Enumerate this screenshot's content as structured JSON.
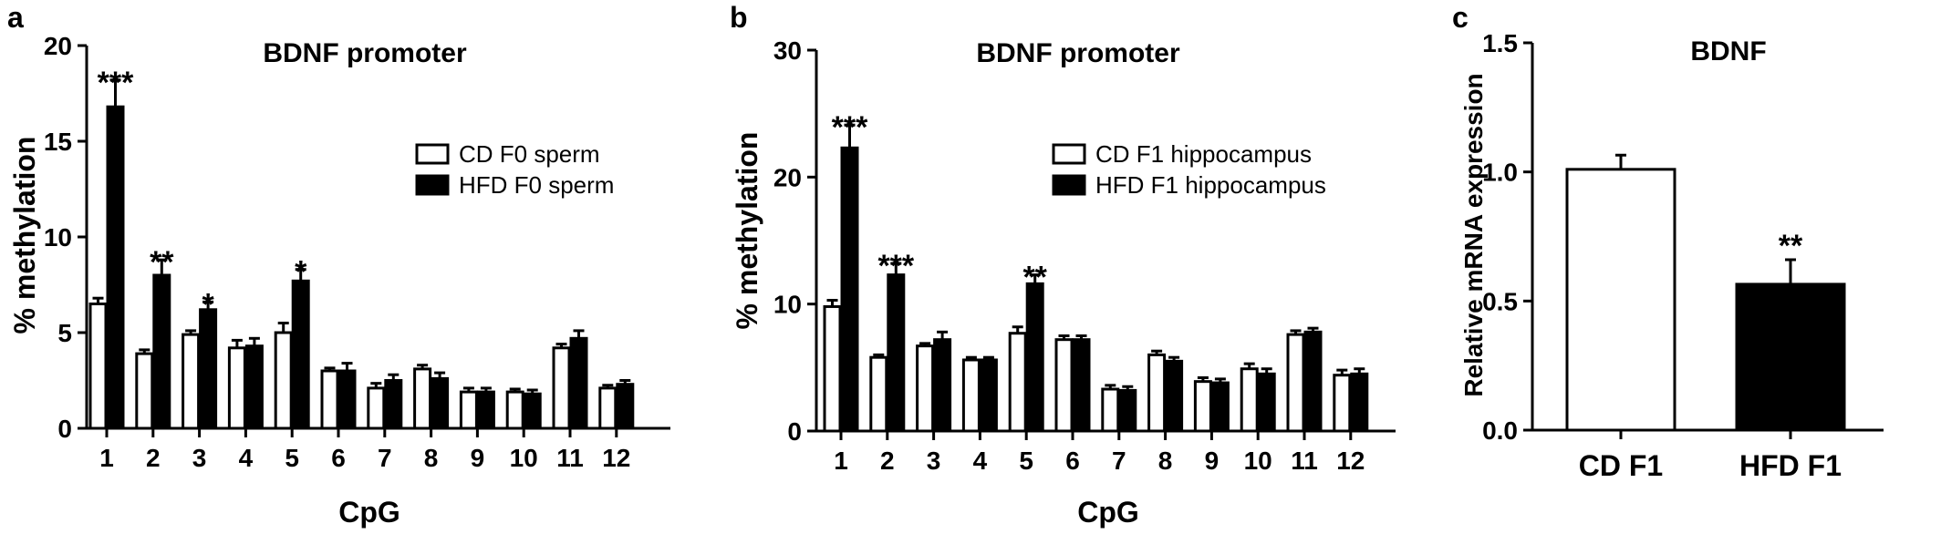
{
  "chart_data": [
    {
      "panel": "a",
      "type": "bar",
      "title": "BDNF promoter",
      "xlabel": "CpG",
      "ylabel": "% methylation",
      "ylim": [
        0,
        20
      ],
      "yticks": [
        "0",
        "5",
        "10",
        "15",
        "20"
      ],
      "categories": [
        "1",
        "2",
        "3",
        "4",
        "5",
        "6",
        "7",
        "8",
        "9",
        "10",
        "11",
        "12"
      ],
      "legend_position": "top-right",
      "series": [
        {
          "name": "CD F0 sperm",
          "fill": "#ffffff",
          "values": [
            6.5,
            3.9,
            4.9,
            4.2,
            5.0,
            3.0,
            2.1,
            3.1,
            1.9,
            1.9,
            4.2,
            2.1
          ],
          "errors": [
            0.3,
            0.2,
            0.2,
            0.4,
            0.5,
            0.15,
            0.25,
            0.2,
            0.2,
            0.15,
            0.2,
            0.15
          ]
        },
        {
          "name": "HFD F0 sperm",
          "fill": "#000000",
          "values": [
            16.8,
            8.0,
            6.2,
            4.3,
            7.7,
            3.0,
            2.5,
            2.6,
            1.9,
            1.8,
            4.7,
            2.3
          ],
          "errors": [
            1.4,
            0.8,
            0.4,
            0.4,
            0.6,
            0.4,
            0.3,
            0.3,
            0.2,
            0.2,
            0.4,
            0.2
          ],
          "significance": [
            "***",
            "**",
            "*",
            "",
            "*",
            "",
            "",
            "",
            "",
            "",
            "",
            ""
          ]
        }
      ]
    },
    {
      "panel": "b",
      "type": "bar",
      "title": "BDNF promoter",
      "xlabel": "CpG",
      "ylabel": "% methylation",
      "ylim": [
        0,
        30
      ],
      "yticks": [
        "0",
        "10",
        "20",
        "30"
      ],
      "categories": [
        "1",
        "2",
        "3",
        "4",
        "5",
        "6",
        "7",
        "8",
        "9",
        "10",
        "11",
        "12"
      ],
      "legend_position": "top-right",
      "series": [
        {
          "name": "CD F1 hippocampus",
          "fill": "#ffffff",
          "values": [
            9.8,
            5.8,
            6.7,
            5.6,
            7.7,
            7.2,
            3.3,
            6.0,
            3.9,
            4.9,
            7.6,
            4.4
          ],
          "errors": [
            0.5,
            0.2,
            0.2,
            0.2,
            0.5,
            0.3,
            0.3,
            0.3,
            0.3,
            0.4,
            0.3,
            0.4
          ]
        },
        {
          "name": "HFD F1 hippocampus",
          "fill": "#000000",
          "values": [
            22.3,
            12.3,
            7.2,
            5.6,
            11.6,
            7.2,
            3.2,
            5.5,
            3.8,
            4.5,
            7.8,
            4.5
          ],
          "errors": [
            1.8,
            0.9,
            0.6,
            0.2,
            0.7,
            0.3,
            0.3,
            0.3,
            0.3,
            0.4,
            0.3,
            0.4
          ],
          "significance": [
            "***",
            "***",
            "",
            "",
            "**",
            "",
            "",
            "",
            "",
            "",
            "",
            ""
          ]
        }
      ]
    },
    {
      "panel": "c",
      "type": "bar",
      "title": "BDNF",
      "xlabel": "",
      "ylabel": "Relative mRNA expression",
      "ylim": [
        0,
        1.5
      ],
      "yticks": [
        "0.0",
        "0.5",
        "1.0",
        "1.5"
      ],
      "categories": [
        "CD F1",
        "HFD F1"
      ],
      "values": [
        1.01,
        0.565
      ],
      "errors": [
        0.055,
        0.095
      ],
      "fills": [
        "#ffffff",
        "#000000"
      ],
      "significance": [
        "",
        "**"
      ]
    }
  ]
}
